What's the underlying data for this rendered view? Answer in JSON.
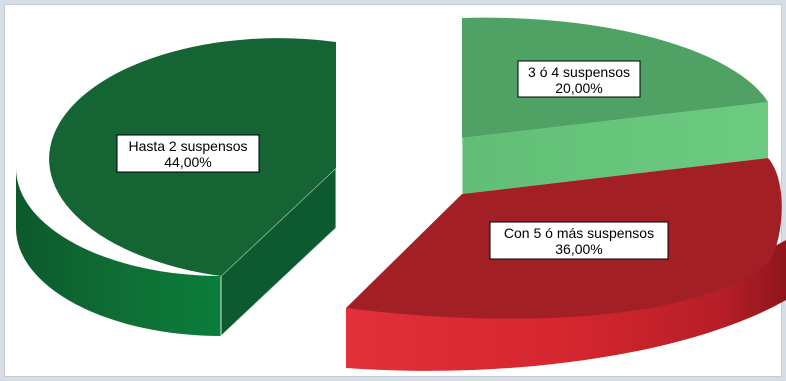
{
  "chart_data": {
    "type": "pie",
    "title": "",
    "legend": "none",
    "slices": [
      {
        "label": "Hasta 2 suspensos",
        "value": 44.0,
        "value_label": "44,00%",
        "color": "#146434",
        "side_color": "#0b7a3a",
        "exploded": true
      },
      {
        "label": "3 ó 4 suspensos",
        "value": 20.0,
        "value_label": "20,00%",
        "color": "#4fa263",
        "side_color": "#66c17a",
        "exploded": false
      },
      {
        "label": "Con 5 ó más suspensos",
        "value": 36.0,
        "value_label": "36,00%",
        "color": "#a31f26",
        "side_color": "#e0313a",
        "exploded": false
      }
    ]
  }
}
